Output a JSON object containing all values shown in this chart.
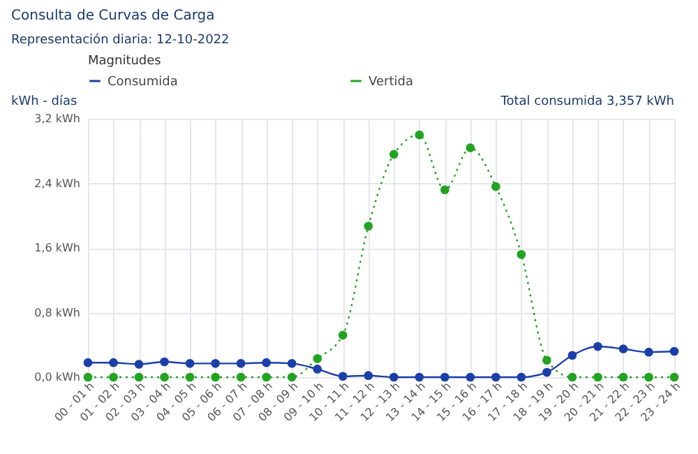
{
  "chart_data": {
    "type": "line",
    "title": "Consulta de Curvas de Carga",
    "subtitle": "Representación diaria: 12-10-2022",
    "legend_title": "Magnitudes",
    "ylabel": "kWh - días",
    "annotations": [
      "Total consumida 3,357 kWh"
    ],
    "categories": [
      "00 - 01 h",
      "01 - 02 h",
      "02 - 03 h",
      "03 - 04 h",
      "04 - 05 h",
      "05 - 06 h",
      "06 - 07 h",
      "07 - 08 h",
      "08 - 09 h",
      "09 - 10 h",
      "10 - 11 h",
      "11 - 12 h",
      "12 - 13 h",
      "13 - 14 h",
      "14 - 15 h",
      "15 - 16 h",
      "16 - 17 h",
      "17 - 18 h",
      "18 - 19 h",
      "19 - 20 h",
      "20 - 21 h",
      "21 - 22 h",
      "22 - 23 h",
      "23 - 24 h"
    ],
    "series": [
      {
        "name": "Consumida",
        "color": "#1a3fa8",
        "line_style": "solid",
        "values": [
          0.18,
          0.18,
          0.16,
          0.19,
          0.17,
          0.17,
          0.17,
          0.18,
          0.17,
          0.1,
          0.01,
          0.02,
          0,
          0,
          0,
          0,
          0,
          0,
          0.06,
          0.27,
          0.38,
          0.35,
          0.31,
          0.32
        ]
      },
      {
        "name": "Vertida",
        "color": "#22a322",
        "line_style": "dotted",
        "values": [
          0,
          0,
          0,
          0,
          0,
          0,
          0,
          0,
          0,
          0.23,
          0.52,
          1.87,
          2.76,
          3.0,
          2.32,
          2.84,
          2.36,
          1.52,
          0.21,
          0,
          0,
          0,
          0,
          0
        ]
      }
    ],
    "ylim": [
      0,
      3.2
    ],
    "yticks": [
      {
        "value": 0,
        "label": "0,0 kWh"
      },
      {
        "value": 0.8,
        "label": "0,8 kWh"
      },
      {
        "value": 1.6,
        "label": "1,6 kWh"
      },
      {
        "value": 2.4,
        "label": "2,4 kWh"
      },
      {
        "value": 3.2,
        "label": "3,2 kWh"
      }
    ],
    "grid": true,
    "legend": "top left",
    "marker": "circle"
  }
}
